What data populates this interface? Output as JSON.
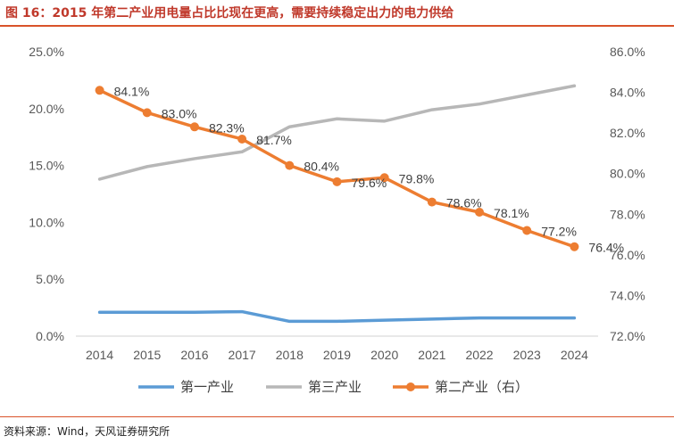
{
  "title": "图 16：2015 年第二产业用电量占比比现在更高，需要持续稳定出力的电力供给",
  "source": "资料来源：Wind，天风证券研究所",
  "chart_data": {
    "type": "line",
    "categories": [
      "2014",
      "2015",
      "2016",
      "2017",
      "2018",
      "2019",
      "2020",
      "2021",
      "2022",
      "2023",
      "2024"
    ],
    "left_axis": {
      "min": 0,
      "max": 25,
      "step": 5,
      "ticks": [
        "0.0%",
        "5.0%",
        "10.0%",
        "15.0%",
        "20.0%",
        "25.0%"
      ]
    },
    "right_axis": {
      "min": 72,
      "max": 86,
      "step": 2,
      "ticks": [
        "72.0%",
        "74.0%",
        "76.0%",
        "78.0%",
        "80.0%",
        "82.0%",
        "84.0%",
        "86.0%"
      ]
    },
    "series": [
      {
        "name": "第一产业",
        "axis": "left",
        "color": "#5b9bd5",
        "marker": false,
        "values": [
          2.1,
          2.1,
          2.1,
          2.15,
          1.3,
          1.3,
          1.4,
          1.5,
          1.6,
          1.6,
          1.6
        ]
      },
      {
        "name": "第三产业",
        "axis": "left",
        "color": "#b7b7b7",
        "marker": false,
        "values": [
          13.8,
          14.9,
          15.6,
          16.2,
          18.4,
          19.1,
          18.9,
          19.9,
          20.4,
          21.2,
          22.0
        ]
      },
      {
        "name": "第二产业（右）",
        "axis": "right",
        "color": "#ed7d31",
        "marker": true,
        "values": [
          84.1,
          83.0,
          82.3,
          81.7,
          80.4,
          79.6,
          79.8,
          78.6,
          78.1,
          77.2,
          76.4
        ],
        "labels": [
          "84.1%",
          "83.0%",
          "82.3%",
          "81.7%",
          "80.4%",
          "79.6%",
          "79.8%",
          "78.6%",
          "78.1%",
          "77.2%",
          "76.4%"
        ]
      }
    ],
    "legend": {
      "position": "bottom"
    }
  }
}
